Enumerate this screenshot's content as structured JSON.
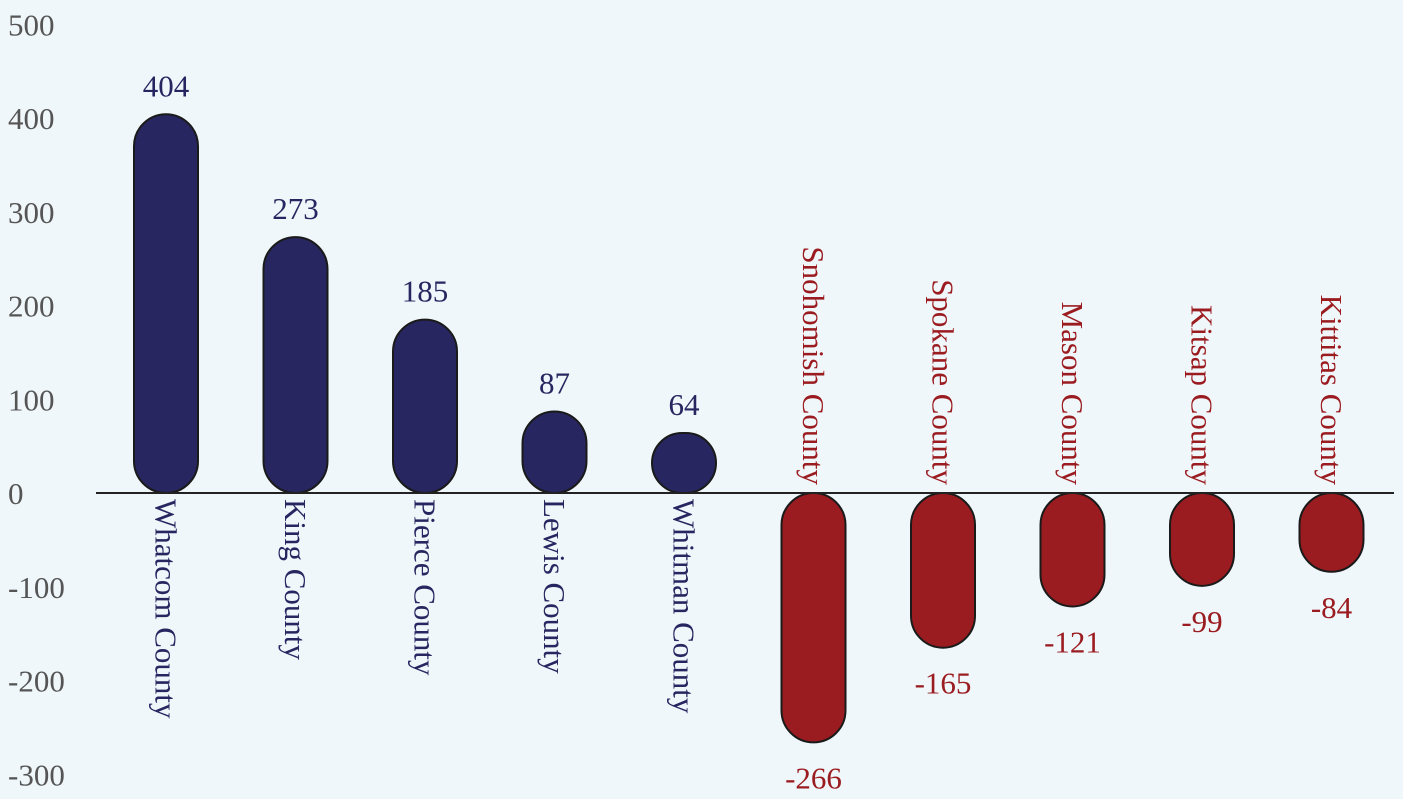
{
  "chart_data": {
    "type": "bar",
    "title": "",
    "xlabel": "",
    "ylabel": "",
    "ylim": [
      -300,
      500
    ],
    "yticks": [
      500,
      400,
      300,
      200,
      100,
      0,
      -100,
      -200,
      -300
    ],
    "grid": false,
    "legend": "none",
    "categories": [
      "Whatcom County",
      "King County",
      "Pierce County",
      "Lewis County",
      "Whitman County",
      "Snohomish County",
      "Spokane County",
      "Mason County",
      "Kitsap County",
      "Kittitas County"
    ],
    "values": [
      404,
      273,
      185,
      87,
      64,
      -266,
      -165,
      -121,
      -99,
      -84
    ],
    "value_labels": [
      "404",
      "273",
      "185",
      "87",
      "64",
      "-266",
      "-165",
      "-121",
      "-99",
      "-84"
    ],
    "colors": {
      "positive": "#272660",
      "negative": "#9b1c20",
      "axis": "#222222",
      "tick_text": "#555555",
      "background": "#eff7fa"
    }
  }
}
